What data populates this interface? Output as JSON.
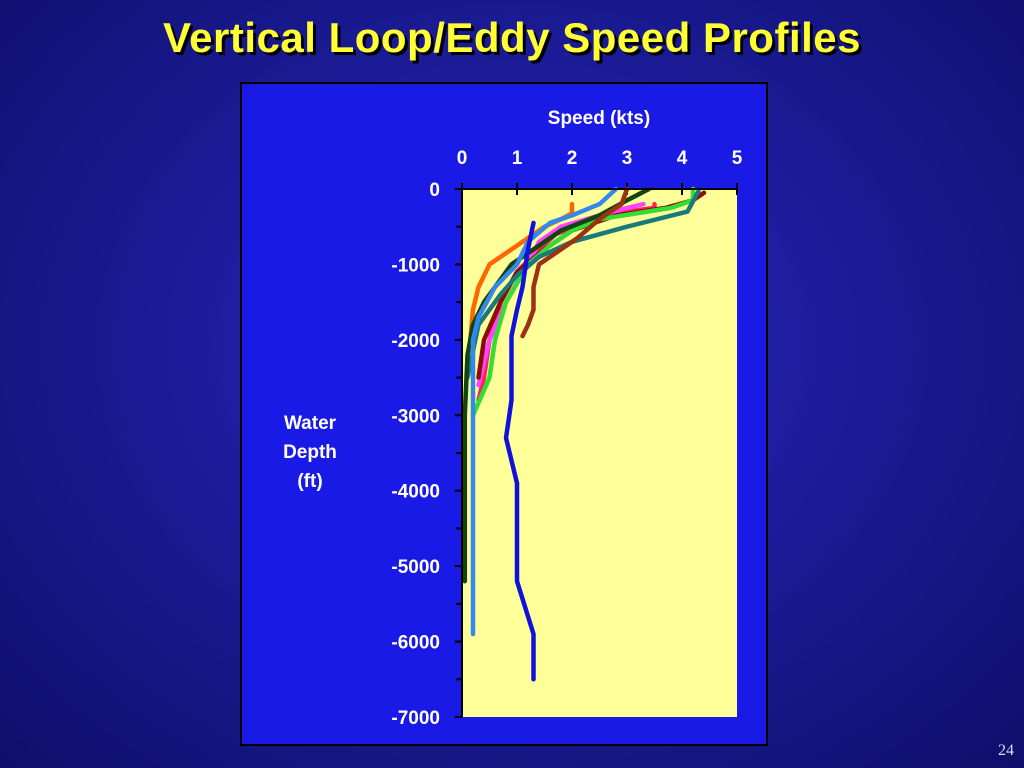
{
  "slide": {
    "title": "Vertical Loop/Eddy Speed Profiles",
    "page_number": "24"
  },
  "colors": {
    "background": "#1c1c9a",
    "title": "#ffff33",
    "panel": "#1a1ae6",
    "plot_area": "#ffff99",
    "axis_text": "#ffffff"
  },
  "chart_data": {
    "type": "line",
    "title": "",
    "xlabel": "Speed (kts)",
    "ylabel_lines": [
      "Water",
      "Depth",
      "(ft)"
    ],
    "xlim": [
      0,
      5
    ],
    "ylim": [
      -7000,
      0
    ],
    "x_ticks": [
      0,
      1,
      2,
      3,
      4,
      5
    ],
    "y_ticks": [
      0,
      -1000,
      -2000,
      -3000,
      -4000,
      -5000,
      -6000,
      -7000
    ],
    "x_axis_position": "top",
    "grid": false,
    "legend": "none",
    "series": [
      {
        "color": "#ff6600",
        "points": [
          [
            2.0,
            -200
          ],
          [
            2.0,
            -320
          ],
          [
            1.8,
            -400
          ],
          [
            1.5,
            -500
          ],
          [
            1.0,
            -750
          ],
          [
            0.5,
            -1000
          ],
          [
            0.3,
            -1300
          ],
          [
            0.2,
            -1600
          ],
          [
            0.15,
            -2000
          ]
        ]
      },
      {
        "color": "#ff2255",
        "points": [
          [
            3.5,
            -200
          ],
          [
            3.5,
            -250
          ],
          [
            3.0,
            -300
          ],
          [
            2.4,
            -400
          ],
          [
            1.7,
            -600
          ],
          [
            1.4,
            -800
          ],
          [
            1.0,
            -1100
          ],
          [
            0.7,
            -1500
          ],
          [
            0.5,
            -2000
          ],
          [
            0.4,
            -2500
          ],
          [
            0.3,
            -2800
          ]
        ]
      },
      {
        "color": "#ff44ff",
        "points": [
          [
            3.3,
            -200
          ],
          [
            3.0,
            -250
          ],
          [
            2.5,
            -350
          ],
          [
            1.8,
            -500
          ],
          [
            1.4,
            -700
          ],
          [
            1.2,
            -1000
          ],
          [
            0.8,
            -1500
          ],
          [
            0.5,
            -2000
          ],
          [
            0.3,
            -2600
          ]
        ]
      },
      {
        "color": "#8b0a0a",
        "points": [
          [
            4.4,
            -50
          ],
          [
            4.2,
            -150
          ],
          [
            3.7,
            -250
          ],
          [
            2.8,
            -350
          ],
          [
            2.0,
            -550
          ],
          [
            1.5,
            -800
          ],
          [
            1.0,
            -1100
          ],
          [
            0.7,
            -1500
          ],
          [
            0.4,
            -2000
          ],
          [
            0.3,
            -2500
          ]
        ]
      },
      {
        "color": "#33dd33",
        "points": [
          [
            4.2,
            0
          ],
          [
            4.2,
            -150
          ],
          [
            3.8,
            -250
          ],
          [
            2.5,
            -400
          ],
          [
            2.0,
            -550
          ],
          [
            1.6,
            -750
          ],
          [
            1.2,
            -1000
          ],
          [
            0.8,
            -1500
          ],
          [
            0.6,
            -2000
          ],
          [
            0.5,
            -2500
          ],
          [
            0.2,
            -3000
          ]
        ]
      },
      {
        "color": "#1a7a7a",
        "points": [
          [
            4.3,
            -30
          ],
          [
            4.1,
            -300
          ],
          [
            3.0,
            -500
          ],
          [
            2.0,
            -700
          ],
          [
            1.4,
            -900
          ],
          [
            1.0,
            -1150
          ],
          [
            0.7,
            -1400
          ],
          [
            0.3,
            -1800
          ],
          [
            0.1,
            -2500
          ]
        ]
      },
      {
        "color": "#114411",
        "points": [
          [
            3.4,
            0
          ],
          [
            3.0,
            -150
          ],
          [
            2.5,
            -350
          ],
          [
            1.8,
            -550
          ],
          [
            1.4,
            -750
          ],
          [
            0.9,
            -1000
          ],
          [
            0.6,
            -1300
          ],
          [
            0.4,
            -1500
          ],
          [
            0.2,
            -1800
          ],
          [
            0.1,
            -2200
          ],
          [
            0.05,
            -3000
          ],
          [
            0.05,
            -5200
          ]
        ]
      },
      {
        "color": "#993311",
        "points": [
          [
            3.0,
            0
          ],
          [
            2.9,
            -200
          ],
          [
            2.5,
            -400
          ],
          [
            2.1,
            -650
          ],
          [
            1.7,
            -850
          ],
          [
            1.4,
            -1000
          ],
          [
            1.3,
            -1300
          ],
          [
            1.3,
            -1600
          ],
          [
            1.2,
            -1800
          ],
          [
            1.1,
            -1950
          ]
        ]
      },
      {
        "color": "#3388ee",
        "points": [
          [
            2.8,
            0
          ],
          [
            2.5,
            -200
          ],
          [
            2.0,
            -350
          ],
          [
            1.6,
            -450
          ],
          [
            1.2,
            -700
          ],
          [
            1.0,
            -1000
          ],
          [
            0.6,
            -1300
          ],
          [
            0.3,
            -1700
          ],
          [
            0.2,
            -2000
          ],
          [
            0.2,
            -3000
          ],
          [
            0.2,
            -5900
          ]
        ]
      },
      {
        "color": "#1111dd",
        "points": [
          [
            1.3,
            -450
          ],
          [
            1.2,
            -800
          ],
          [
            1.1,
            -1300
          ],
          [
            1.0,
            -1600
          ],
          [
            0.9,
            -1950
          ],
          [
            0.9,
            -2500
          ],
          [
            0.9,
            -2800
          ],
          [
            0.8,
            -3300
          ],
          [
            1.0,
            -3900
          ],
          [
            1.0,
            -5200
          ],
          [
            1.3,
            -5900
          ],
          [
            1.3,
            -6500
          ]
        ]
      }
    ]
  }
}
